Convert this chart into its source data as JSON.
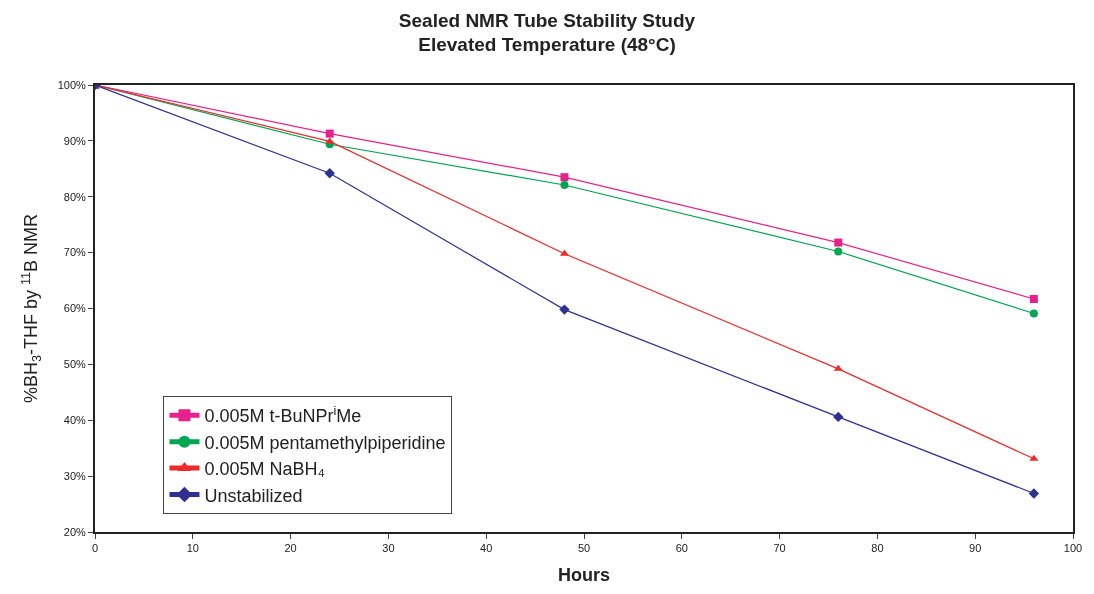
{
  "chart_data": {
    "type": "line",
    "title": "Sealed NMR Tube Stability Study\nElevated Temperature (48°C)",
    "xlabel": "Hours",
    "ylabel": "%BH$_{3}$-THF by $^{11}$B NMR",
    "x": [
      0,
      24,
      48,
      76,
      96
    ],
    "series": [
      {
        "name": "0.005M t-BuNPr$^{i}$Me",
        "color": "#e8208c",
        "marker": "square",
        "values": [
          100,
          91.3,
          83.5,
          71.8,
          61.7
        ]
      },
      {
        "name": "0.005M pentamethylpiperidine",
        "color": "#00a650",
        "marker": "circle",
        "values": [
          100,
          89.4,
          82.1,
          70.2,
          59.1
        ]
      },
      {
        "name": "0.005M NaBH₄",
        "color": "#ee2b2b",
        "marker": "triangle",
        "values": [
          100,
          89.9,
          69.8,
          49.2,
          33.1
        ]
      },
      {
        "name": "Unstabilized",
        "color": "#2e3192",
        "marker": "diamond",
        "values": [
          100,
          84.2,
          59.8,
          40.6,
          26.9
        ]
      }
    ],
    "xlim": [
      0,
      100
    ],
    "xticks": [
      0,
      10,
      20,
      30,
      40,
      50,
      60,
      70,
      80,
      90,
      100
    ],
    "ylim": [
      20,
      100
    ],
    "yticks": [
      {
        "value": 20,
        "label": "20%"
      },
      {
        "value": 30,
        "label": "30%"
      },
      {
        "value": 40,
        "label": "40%"
      },
      {
        "value": 50,
        "label": "50%"
      },
      {
        "value": 60,
        "label": "60%"
      },
      {
        "value": 70,
        "label": "70%"
      },
      {
        "value": 80,
        "label": "80%"
      },
      {
        "value": 90,
        "label": "90%"
      },
      {
        "value": 100,
        "label": "100%"
      }
    ],
    "legend": "bottom left",
    "line_style": "solid"
  }
}
